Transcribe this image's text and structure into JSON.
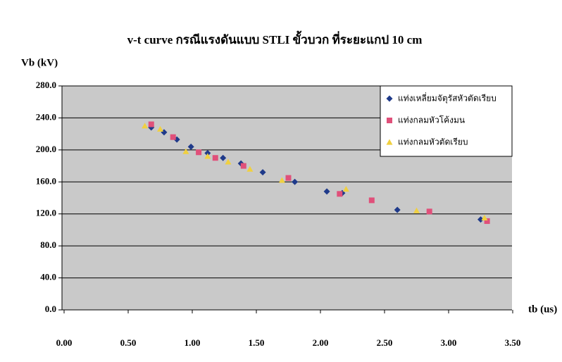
{
  "chart_data": {
    "type": "scatter",
    "title": "v-t curve กรณีแรงดันแบบ STLI ขั้วบวก ที่ระยะแกป 10 cm",
    "y_label": "Vb (kV)",
    "x_label": "tb (us)",
    "xlim": [
      0,
      3.5
    ],
    "xticks": [
      {
        "value": 0,
        "label": "0.00"
      },
      {
        "value": 0.5,
        "label": "0.50"
      },
      {
        "value": 1,
        "label": "1.00"
      },
      {
        "value": 1.5,
        "label": "1.50"
      },
      {
        "value": 2,
        "label": "2.00"
      },
      {
        "value": 2.5,
        "label": "2.50"
      },
      {
        "value": 3,
        "label": "3.00"
      },
      {
        "value": 3.5,
        "label": "3.50"
      }
    ],
    "ylim": [
      0,
      280
    ],
    "yticks": [
      {
        "value": 0,
        "label": "0.0"
      },
      {
        "value": 40,
        "label": "40.0"
      },
      {
        "value": 80,
        "label": "80.0"
      },
      {
        "value": 120,
        "label": "120.0"
      },
      {
        "value": 160,
        "label": "160.0"
      },
      {
        "value": 200,
        "label": "200.0"
      },
      {
        "value": 240,
        "label": "240.0"
      },
      {
        "value": 280,
        "label": "280.0"
      }
    ],
    "grid": true,
    "legend": "top-right",
    "series": [
      {
        "name": "แท่งเหลี่ยมจัตุรัสหัวตัดเรียบ",
        "color": "#1f3a8a",
        "marker": "diamond",
        "x": [
          0.68,
          0.78,
          0.88,
          0.99,
          1.12,
          1.24,
          1.38,
          1.55,
          1.8,
          2.05,
          2.17,
          2.6,
          3.25
        ],
        "values": [
          228,
          222,
          213,
          204,
          196,
          190,
          183,
          172,
          160,
          148,
          146,
          125,
          113
        ]
      },
      {
        "name": "แท่งกลมหัวโค้งมน",
        "color": "#e0507a",
        "marker": "square",
        "x": [
          0.68,
          0.85,
          1.05,
          1.18,
          1.4,
          1.75,
          2.15,
          2.4,
          2.85,
          3.3
        ],
        "values": [
          232,
          216,
          197,
          190,
          180,
          165,
          145,
          137,
          123,
          111
        ]
      },
      {
        "name": "แท่งกลมหัวตัดเรียบ",
        "color": "#f0d040",
        "marker": "triangle",
        "x": [
          0.63,
          0.75,
          0.95,
          1.12,
          1.28,
          1.45,
          1.7,
          2.2,
          2.75,
          3.28
        ],
        "values": [
          230,
          226,
          198,
          192,
          185,
          176,
          162,
          151,
          124,
          115
        ]
      }
    ]
  }
}
